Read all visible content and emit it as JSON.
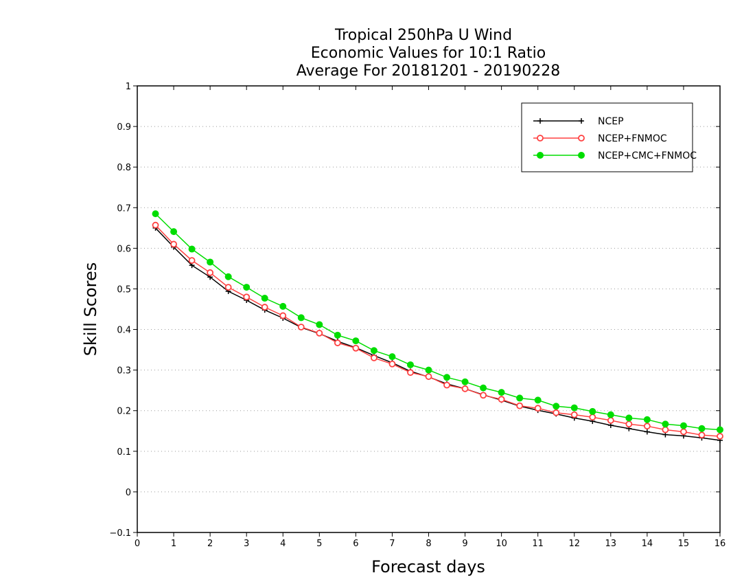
{
  "chart_data": {
    "type": "line",
    "title_lines": [
      "Tropical 250hPa U Wind",
      "Economic Values for 10:1 Ratio",
      "Average For 20181201 - 20190228"
    ],
    "xlabel": "Forecast days",
    "ylabel": "Skill Scores",
    "xlim": [
      0,
      16
    ],
    "ylim": [
      -0.1,
      1
    ],
    "x_ticks": [
      "0",
      "1",
      "2",
      "3",
      "4",
      "5",
      "6",
      "7",
      "8",
      "9",
      "10",
      "11",
      "12",
      "13",
      "14",
      "15",
      "16"
    ],
    "y_ticks": [
      "−0.1",
      "0",
      "0.1",
      "0.2",
      "0.3",
      "0.4",
      "0.5",
      "0.6",
      "0.7",
      "0.8",
      "0.9",
      "1"
    ],
    "grid": "dotted horizontal",
    "legend_position": "top-right",
    "x": [
      0.5,
      1,
      1.5,
      2,
      2.5,
      3,
      3.5,
      4,
      4.5,
      5,
      5.5,
      6,
      6.5,
      7,
      7.5,
      8,
      8.5,
      9,
      9.5,
      10,
      10.5,
      11,
      11.5,
      12,
      12.5,
      13,
      13.5,
      14,
      14.5,
      15,
      15.5,
      16
    ],
    "series": [
      {
        "name": "NCEP",
        "color": "#000000",
        "marker": "plus",
        "values": [
          0.65,
          0.603,
          0.558,
          0.529,
          0.494,
          0.472,
          0.448,
          0.428,
          0.405,
          0.39,
          0.371,
          0.355,
          0.336,
          0.318,
          0.297,
          0.283,
          0.266,
          0.254,
          0.239,
          0.226,
          0.211,
          0.201,
          0.192,
          0.182,
          0.174,
          0.164,
          0.156,
          0.148,
          0.141,
          0.138,
          0.133,
          0.127
        ]
      },
      {
        "name": "NCEP+FNMOC",
        "color": "#ff4040",
        "marker": "open-circle",
        "values": [
          0.657,
          0.61,
          0.57,
          0.54,
          0.504,
          0.48,
          0.455,
          0.434,
          0.406,
          0.391,
          0.367,
          0.354,
          0.33,
          0.315,
          0.294,
          0.284,
          0.263,
          0.254,
          0.238,
          0.228,
          0.212,
          0.206,
          0.195,
          0.19,
          0.184,
          0.176,
          0.167,
          0.162,
          0.153,
          0.148,
          0.14,
          0.137
        ]
      },
      {
        "name": "NCEP+CMC+FNMOC",
        "color": "#00dd00",
        "marker": "filled-circle",
        "values": [
          0.685,
          0.641,
          0.598,
          0.566,
          0.53,
          0.504,
          0.477,
          0.457,
          0.429,
          0.412,
          0.386,
          0.372,
          0.348,
          0.333,
          0.313,
          0.3,
          0.282,
          0.271,
          0.256,
          0.245,
          0.231,
          0.226,
          0.211,
          0.207,
          0.198,
          0.19,
          0.182,
          0.178,
          0.167,
          0.163,
          0.156,
          0.153
        ]
      }
    ]
  }
}
